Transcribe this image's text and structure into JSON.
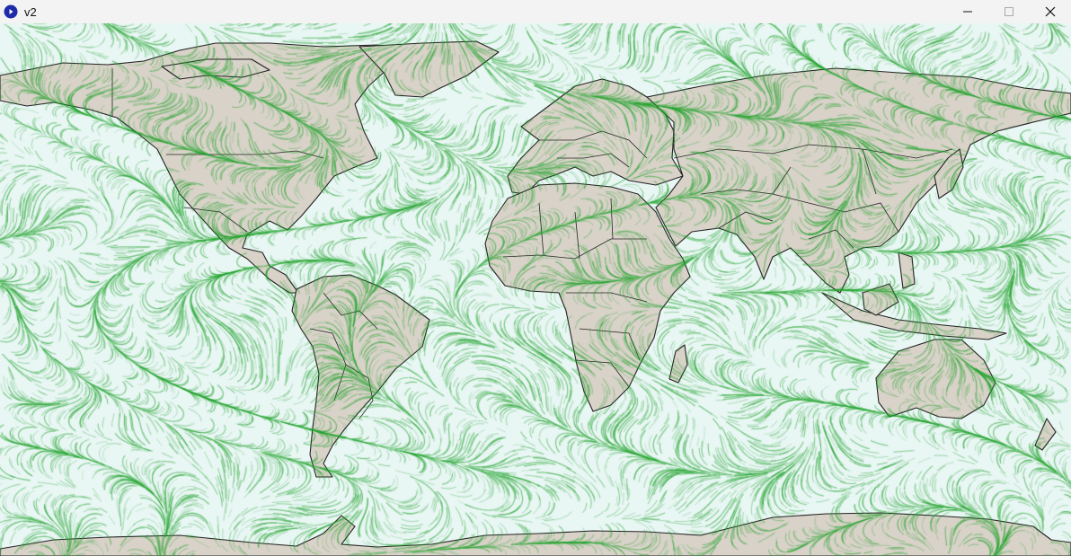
{
  "window": {
    "title": "v2",
    "icon": "blue-circle-app-icon",
    "controls": [
      "minimize-icon",
      "maximize-icon",
      "close-icon"
    ]
  },
  "map": {
    "projection": "equirectangular",
    "longitude_range": [
      -180,
      180
    ],
    "latitude_range": [
      -90,
      90
    ],
    "colors": {
      "ocean": "#e8f6f4",
      "land": "#d8d2c8",
      "border": "#222222",
      "particles": "#1fa22a"
    },
    "layers": [
      "wind-particle-flow",
      "land-masses",
      "country-borders"
    ]
  }
}
